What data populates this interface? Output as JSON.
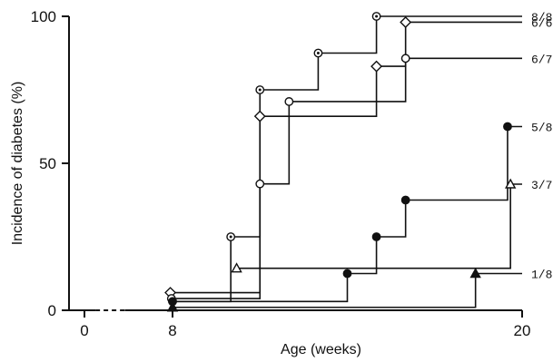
{
  "chart_data": {
    "type": "line",
    "step": true,
    "title": "",
    "xlabel": "Age (weeks)",
    "ylabel": "Incidence of diabetes (%)",
    "xlim": [
      0,
      20
    ],
    "ylim": [
      0,
      100
    ],
    "x_axis_break": [
      1,
      3
    ],
    "xticks": [
      {
        "value": 0,
        "label": "0"
      },
      {
        "value": 8,
        "label": "8"
      },
      {
        "value": 20,
        "label": "20"
      }
    ],
    "yticks": [
      {
        "value": 0,
        "label": "0"
      },
      {
        "value": 50,
        "label": "50"
      },
      {
        "value": 100,
        "label": "100"
      }
    ],
    "legend": "none",
    "grid": false,
    "line_color": "#111111",
    "series": [
      {
        "end_label": "8/8",
        "marker": "dotted-circle",
        "points": [
          [
            8,
            3
          ],
          [
            10,
            25
          ],
          [
            11,
            75
          ],
          [
            13,
            87.5
          ],
          [
            15,
            100
          ]
        ],
        "x_end": 20
      },
      {
        "end_label": "6/6",
        "marker": "open-diamond",
        "points": [
          [
            7.8,
            6
          ],
          [
            11,
            66
          ],
          [
            15,
            83
          ],
          [
            16,
            98
          ]
        ],
        "x_end": 20
      },
      {
        "end_label": "6/7",
        "marker": "open-circle",
        "points": [
          [
            7.9,
            4
          ],
          [
            11,
            43
          ],
          [
            12,
            71
          ],
          [
            16,
            85.7
          ]
        ],
        "x_end": 20
      },
      {
        "end_label": "5/8",
        "marker": "filled-circle",
        "points": [
          [
            8,
            3
          ],
          [
            14,
            12.5
          ],
          [
            15,
            25
          ],
          [
            16,
            37.5
          ],
          [
            19.5,
            62.5
          ]
        ],
        "x_end": 20
      },
      {
        "end_label": "3/7",
        "marker": "open-triangle",
        "points": [
          [
            10.2,
            14.3
          ],
          [
            19.6,
            42.9
          ]
        ],
        "x_end": 20
      },
      {
        "end_label": "1/8",
        "marker": "filled-triangle",
        "points": [
          [
            8,
            1
          ],
          [
            18.4,
            12.5
          ]
        ],
        "x_end": 20
      }
    ]
  }
}
